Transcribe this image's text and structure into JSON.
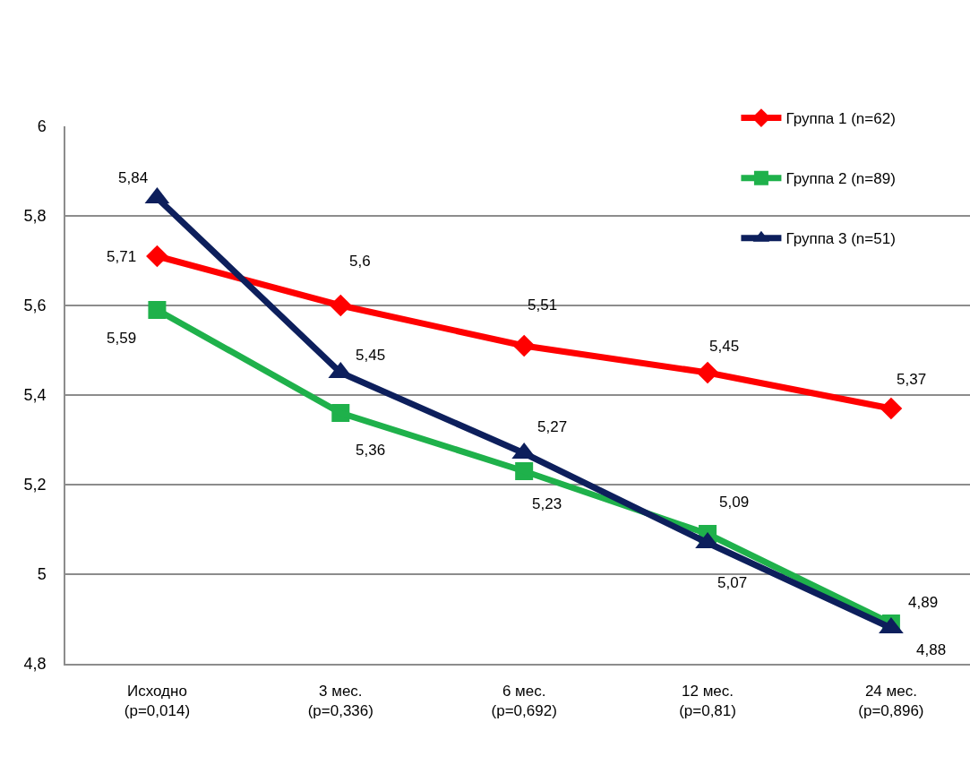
{
  "chart_data": {
    "type": "line",
    "categories": [
      "Исходно\n(p=0,014)",
      "3 мес.\n(p=0,336)",
      "6 мес.\n(p=0,692)",
      "12 мес.\n(p=0,81)",
      "24 мес.\n(p=0,896)"
    ],
    "ylim": [
      4.8,
      6
    ],
    "yticks": [
      {
        "value": 4.8,
        "label": "4,8"
      },
      5,
      {
        "value": 5.2,
        "label": "5,2"
      },
      {
        "value": 5.4,
        "label": "5,4"
      },
      {
        "value": 5.6,
        "label": "5,6"
      },
      {
        "value": 5.8,
        "label": "5,8"
      },
      6
    ],
    "grid": "y",
    "legend": "top right",
    "line_style": "solid",
    "series": [
      {
        "name": "Группа 1 (n=62)",
        "color": "#ff0000",
        "marker": "diamond",
        "values": [
          5.71,
          5.6,
          5.51,
          5.45,
          5.37
        ],
        "value_labels": [
          "5,71",
          "5,6",
          "5,51",
          "5,45",
          "5,37"
        ]
      },
      {
        "name": "Группа 2 (n=89)",
        "color": "#1fb14b",
        "marker": "square",
        "values": [
          5.59,
          5.36,
          5.23,
          5.09,
          4.89
        ],
        "value_labels": [
          "5,59",
          "5,36",
          "5,23",
          "5,09",
          "4,89"
        ]
      },
      {
        "name": "Группа 3 (n=51)",
        "color": "#0d1f5c",
        "marker": "triangle",
        "values": [
          5.84,
          5.45,
          5.27,
          5.07,
          4.88
        ],
        "value_labels": [
          "5,84",
          "5,45",
          "5,27",
          "5,07",
          "4,88"
        ]
      }
    ]
  }
}
